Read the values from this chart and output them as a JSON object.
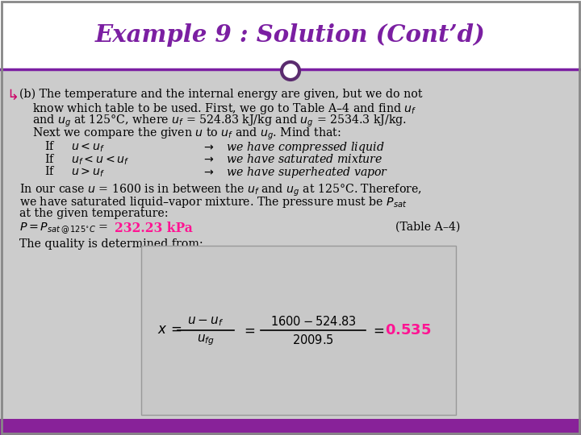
{
  "title": "Example 9 : Solution (Cont’d)",
  "title_color": "#7B1FA2",
  "bg_color": "#CCCCCC",
  "header_bg": "#FFFFFF",
  "footer_color": "#882299",
  "circle_color": "#5B2C6F",
  "body_text_color": "#000000",
  "highlight_color": "#FF1493",
  "formula_bg": "#CCCCCC",
  "border_color": "#AAAAAA",
  "line1": "(b) The temperature and the internal energy are given, but we do not",
  "line2": "know which table to be used. First, we go to Table A–4 and find $u_f$",
  "line3": "and $u_g$ at 125°C, where $u_f$ = 524.83 kJ/kg and $u_g$ = 2534.3 kJ/kg.",
  "line4": "Next we compare the given $u$ to $u_f$ and $u_g$. Mind that:",
  "if1_left": "If     $u < u_f$",
  "if1_right": "$\\rightarrow$   we have compressed liquid",
  "if2_left": "If     $u_f < u < u_f$",
  "if2_right": "$\\rightarrow$   we have saturated mixture",
  "if3_left": "If     $u > u_f$",
  "if3_right": "$\\rightarrow$   we have superheated vapor",
  "p2l1": "In our case $u$ = 1600 is in between the $u_f$ and $u_g$ at 125°C. Therefore,",
  "p2l2": "we have saturated liquid–vapor mixture. The pressure must be $P_{sat}$",
  "p2l3": "at the given temperature:",
  "peq_left": "$P = P_{sat\\,@\\,125^{\\circ}C}$ = ",
  "peq_highlight": "232.23 kPa",
  "peq_right": "(Table A–4)",
  "quality_line": "The quality is determined from:"
}
